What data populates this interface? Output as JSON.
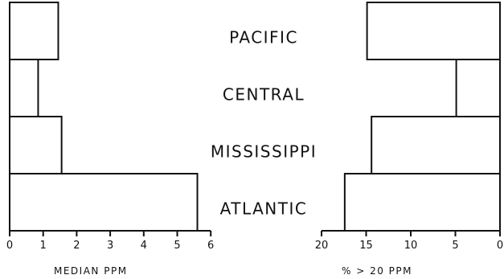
{
  "chart_data": [
    {
      "type": "bar",
      "orientation": "horizontal",
      "categories": [
        "PACIFIC",
        "CENTRAL",
        "MISSISSIPPI",
        "ATLANTIC"
      ],
      "values": [
        1.45,
        0.85,
        1.55,
        5.6
      ],
      "xlabel": "MEDIAN PPM",
      "xlim": [
        0,
        6
      ],
      "ticks": [
        "0",
        "1",
        "2",
        "3",
        "4",
        "5",
        "6"
      ],
      "grid": false
    },
    {
      "type": "bar",
      "orientation": "horizontal",
      "direction": "reversed",
      "categories": [
        "PACIFIC",
        "CENTRAL",
        "MISSISSIPPI",
        "ATLANTIC"
      ],
      "values": [
        14.9,
        4.9,
        14.4,
        17.4
      ],
      "xlabel": "% > 20 PPM",
      "xlim": [
        0,
        20
      ],
      "ticks": [
        "20",
        "15",
        "10",
        "5",
        "0"
      ],
      "grid": false
    }
  ]
}
